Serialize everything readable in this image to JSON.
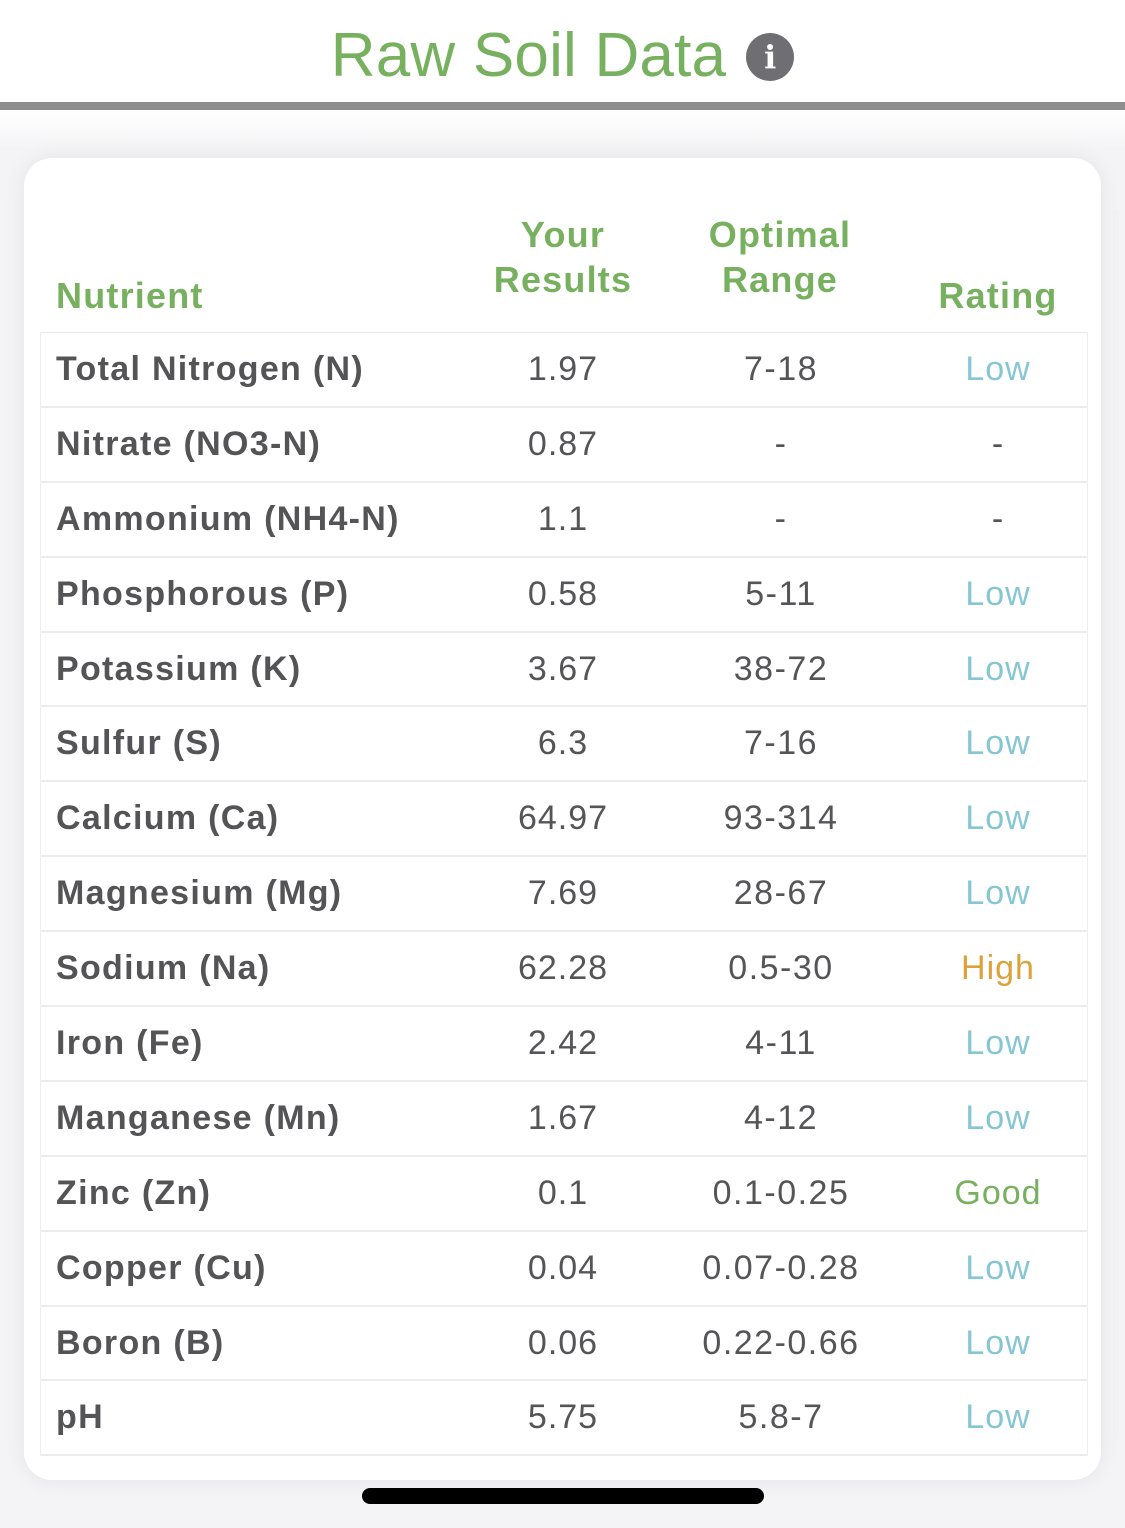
{
  "header": {
    "title": "Raw Soil Data",
    "info_icon_glyph": "i",
    "info_icon": "info-circle-icon"
  },
  "table": {
    "columns": {
      "nutrient": "Nutrient",
      "results_line1": "Your",
      "results_line2": "Results",
      "optimal_line1": "Optimal",
      "optimal_line2": "Range",
      "rating": "Rating"
    },
    "rows": [
      {
        "name": "Total Nitrogen (N)",
        "result": "1.97",
        "range": "7-18",
        "rating": "Low",
        "rating_class": "low"
      },
      {
        "name": "Nitrate (NO3-N)",
        "result": "0.87",
        "range": "-",
        "rating": "-",
        "rating_class": "none"
      },
      {
        "name": "Ammonium (NH4-N)",
        "result": "1.1",
        "range": "-",
        "rating": "-",
        "rating_class": "none"
      },
      {
        "name": "Phosphorous (P)",
        "result": "0.58",
        "range": "5-11",
        "rating": "Low",
        "rating_class": "low"
      },
      {
        "name": "Potassium (K)",
        "result": "3.67",
        "range": "38-72",
        "rating": "Low",
        "rating_class": "low"
      },
      {
        "name": "Sulfur (S)",
        "result": "6.3",
        "range": "7-16",
        "rating": "Low",
        "rating_class": "low"
      },
      {
        "name": "Calcium (Ca)",
        "result": "64.97",
        "range": "93-314",
        "rating": "Low",
        "rating_class": "low"
      },
      {
        "name": "Magnesium (Mg)",
        "result": "7.69",
        "range": "28-67",
        "rating": "Low",
        "rating_class": "low"
      },
      {
        "name": "Sodium (Na)",
        "result": "62.28",
        "range": "0.5-30",
        "rating": "High",
        "rating_class": "high"
      },
      {
        "name": "Iron (Fe)",
        "result": "2.42",
        "range": "4-11",
        "rating": "Low",
        "rating_class": "low"
      },
      {
        "name": "Manganese (Mn)",
        "result": "1.67",
        "range": "4-12",
        "rating": "Low",
        "rating_class": "low"
      },
      {
        "name": "Zinc (Zn)",
        "result": "0.1",
        "range": "0.1-0.25",
        "rating": "Good",
        "rating_class": "good"
      },
      {
        "name": "Copper (Cu)",
        "result": "0.04",
        "range": "0.07-0.28",
        "rating": "Low",
        "rating_class": "low"
      },
      {
        "name": "Boron (B)",
        "result": "0.06",
        "range": "0.22-0.66",
        "rating": "Low",
        "rating_class": "low"
      },
      {
        "name": "pH",
        "result": "5.75",
        "range": "5.8-7",
        "rating": "Low",
        "rating_class": "low"
      }
    ]
  },
  "colors": {
    "accent_green": "#77b15f",
    "rating_low": "#86c6d4",
    "rating_high": "#dca13a",
    "rating_good": "#77b15f"
  }
}
